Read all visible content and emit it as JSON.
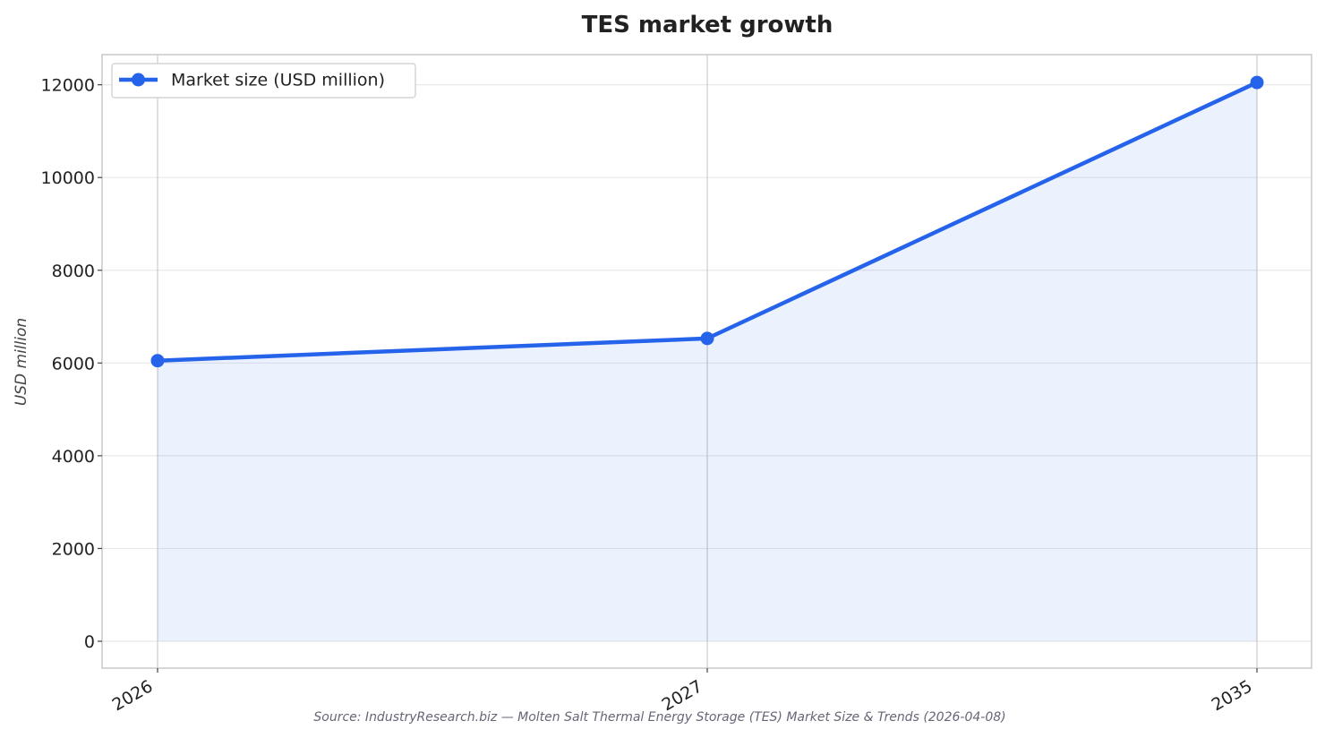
{
  "chart_data": {
    "type": "line",
    "title": "TES market growth",
    "xlabel": "",
    "ylabel": "USD million",
    "categories": [
      "2026",
      "2027",
      "2035"
    ],
    "series": [
      {
        "name": "Market size (USD million)",
        "values": [
          6050,
          6530,
          12050
        ],
        "color": "#2563eb"
      }
    ],
    "ylim": [
      -580,
      12650
    ],
    "yticks": [
      0,
      2000,
      4000,
      6000,
      8000,
      10000,
      12000
    ],
    "area_fill": true,
    "grid": true,
    "legend": "top-left"
  },
  "source_note": "Source: IndustryResearch.biz — Molten Salt Thermal Energy Storage (TES) Market Size & Trends (2026-04-08)"
}
